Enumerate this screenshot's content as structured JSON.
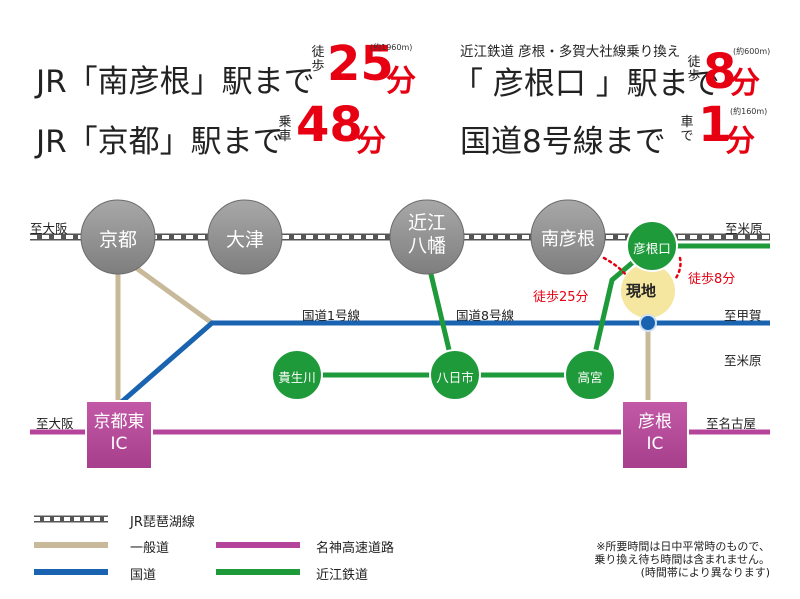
{
  "headlines": {
    "jr_minami": {
      "text": "JR「南彦根」駅まで",
      "mode": "徒歩",
      "value": "25",
      "unit": "分",
      "note": "(約1960m)"
    },
    "jr_kyoto": {
      "text": "JR「京都」駅まで",
      "mode": "乗車",
      "value": "48",
      "unit": "分"
    },
    "ohmi_line": "近江鉄道 彦根・多賀大社線乗り換え",
    "hikoneguchi": {
      "text": "「 彦根口 」駅まで",
      "mode": "徒歩",
      "value": "8",
      "unit": "分",
      "note": "(約600m)"
    },
    "route8": {
      "text": "国道8号線まで",
      "mode": "車で",
      "value": "1",
      "unit": "分",
      "note": "(約160m)"
    }
  },
  "map": {
    "directions": {
      "osaka_rail": "至大阪",
      "maibara_rail": "至米原",
      "kouka": "至甲賀",
      "maibara_ohmi": "至米原",
      "osaka_hwy": "至大阪",
      "nagoya_hwy": "至名古屋"
    },
    "jr_stations": [
      "京都",
      "大津",
      "近江\n八幡",
      "南彦根"
    ],
    "ohmi_stations": {
      "hikoneguchi": "彦根口",
      "echigawa": "貴生川",
      "yokaichi": "八日市",
      "takamiya": "高宮"
    },
    "road_labels": {
      "route1": "国道1号線",
      "route8": "国道8号線"
    },
    "ic": {
      "kyoto_higashi": "京都東\nIC",
      "hikone": "彦根\nIC"
    },
    "site_label": "現地",
    "walk_25": "徒歩25分",
    "walk_8": "徒歩8分"
  },
  "legend": [
    {
      "name": "JR琵琶湖線",
      "type": "dashed-rail"
    },
    {
      "name": "一般道",
      "color": "#c8b99a"
    },
    {
      "name": "国道",
      "color": "#1a63b0"
    },
    {
      "name": "名神高速道路",
      "color": "#b5459a"
    },
    {
      "name": "近江鉄道",
      "color": "#1f9a3b"
    }
  ],
  "notes": [
    "※所要時間は日中平常時のもので、",
    "乗り換え待ち時間は含まれません。",
    "(時間帯により異なります)"
  ],
  "colors": {
    "red": "#e60012",
    "jr_circle": "#8a8a8a",
    "general_road": "#c8b99a",
    "national_road": "#1a63b0",
    "expressway": "#b5459a",
    "ohmi": "#1f9a3b",
    "site": "#f5e6a0"
  }
}
